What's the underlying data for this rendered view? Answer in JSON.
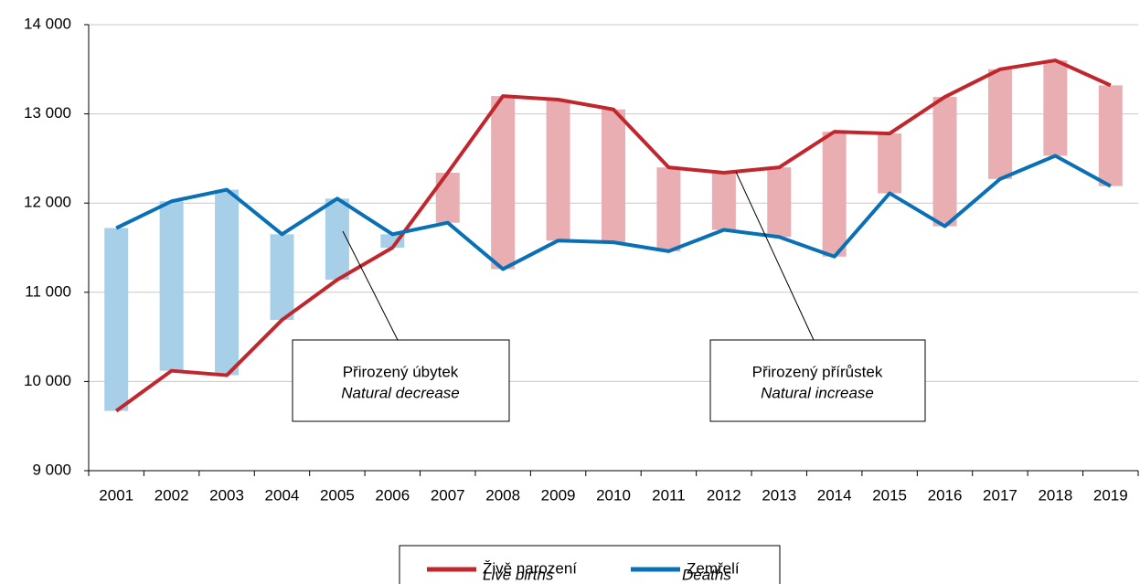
{
  "chart_data": {
    "type": "line-range",
    "categories": [
      "2001",
      "2002",
      "2003",
      "2004",
      "2005",
      "2006",
      "2007",
      "2008",
      "2009",
      "2010",
      "2011",
      "2012",
      "2013",
      "2014",
      "2015",
      "2016",
      "2017",
      "2018",
      "2019"
    ],
    "series": [
      {
        "name": "Živě narození",
        "name_en": "Live births",
        "color": "#c0272d",
        "values": [
          9670,
          10120,
          10070,
          10690,
          11140,
          11500,
          12340,
          13200,
          13160,
          13050,
          12400,
          12340,
          12400,
          12800,
          12780,
          13190,
          13500,
          13600,
          13320
        ]
      },
      {
        "name": "Zemřelí",
        "name_en": "Deaths",
        "color": "#0a70b5",
        "values": [
          11720,
          12020,
          12150,
          11650,
          12050,
          11650,
          11780,
          11260,
          11580,
          11560,
          11460,
          11700,
          11620,
          11400,
          12110,
          11740,
          12270,
          12530,
          12190
        ]
      }
    ],
    "range_colors": {
      "decrease": "#a8cfe8",
      "increase": "#e8aeb1"
    },
    "ylim": [
      9000,
      14000
    ],
    "yticks": [
      {
        "value": 9000,
        "label": "9 000"
      },
      {
        "value": 10000,
        "label": "10 000"
      },
      {
        "value": 11000,
        "label": "11 000"
      },
      {
        "value": 12000,
        "label": "12 000"
      },
      {
        "value": 13000,
        "label": "13 000"
      },
      {
        "value": 14000,
        "label": "14 000"
      }
    ],
    "grid": true,
    "annotations": [
      {
        "text": "Přirozený úbytek",
        "text_en": "Natural decrease"
      },
      {
        "text": "Přirozený přírůstek",
        "text_en": "Natural increase"
      }
    ]
  }
}
